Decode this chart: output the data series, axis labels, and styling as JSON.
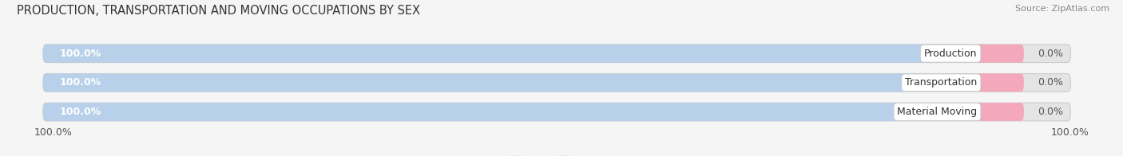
{
  "title": "PRODUCTION, TRANSPORTATION AND MOVING OCCUPATIONS BY SEX",
  "source": "Source: ZipAtlas.com",
  "categories": [
    "Production",
    "Transportation",
    "Material Moving"
  ],
  "male_values": [
    100.0,
    100.0,
    100.0
  ],
  "female_values": [
    0.0,
    0.0,
    0.0
  ],
  "female_bar_display": 5.0,
  "male_color": "#b8d0ea",
  "female_color": "#f4a8bc",
  "bar_bg_color": "#e4e4e4",
  "title_fontsize": 10.5,
  "source_fontsize": 8,
  "tick_fontsize": 9,
  "bar_label_fontsize": 9,
  "category_fontsize": 9,
  "legend_fontsize": 9,
  "x_left_label": "100.0%",
  "x_right_label": "100.0%",
  "background_color": "#f5f5f5",
  "bar_bg_total": 110
}
